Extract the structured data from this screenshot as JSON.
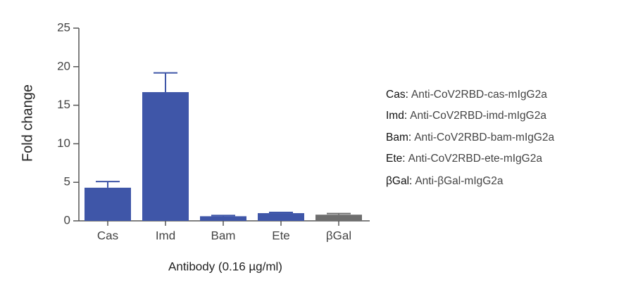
{
  "chart_data": {
    "type": "bar",
    "y_label": "Fold change",
    "x_label": "Antibody (0.16 µg/ml)",
    "categories": [
      "Cas",
      "Imd",
      "Bam",
      "Ete",
      "βGal"
    ],
    "values": [
      4.3,
      16.7,
      0.6,
      1.0,
      0.8
    ],
    "errors": [
      0.8,
      2.5,
      0.1,
      0.1,
      0.15
    ],
    "colors": [
      "#3f56a8",
      "#3f56a8",
      "#3f56a8",
      "#3f56a8",
      "#6e6e6e"
    ],
    "ylim": [
      0,
      25
    ],
    "yticks": [
      0,
      5,
      10,
      15,
      20,
      25
    ],
    "legend": [
      {
        "key": "Cas:",
        "text": "Anti-CoV2RBD-cas-mIgG2a"
      },
      {
        "key": "Imd:",
        "text": "Anti-CoV2RBD-imd-mIgG2a"
      },
      {
        "key": "Bam:",
        "text": "Anti-CoV2RBD-bam-mIgG2a"
      },
      {
        "key": "Ete:",
        "text": "Anti-CoV2RBD-ete-mIgG2a"
      },
      {
        "key": "βGal:",
        "text": "Anti-βGal-mIgG2a"
      }
    ]
  }
}
